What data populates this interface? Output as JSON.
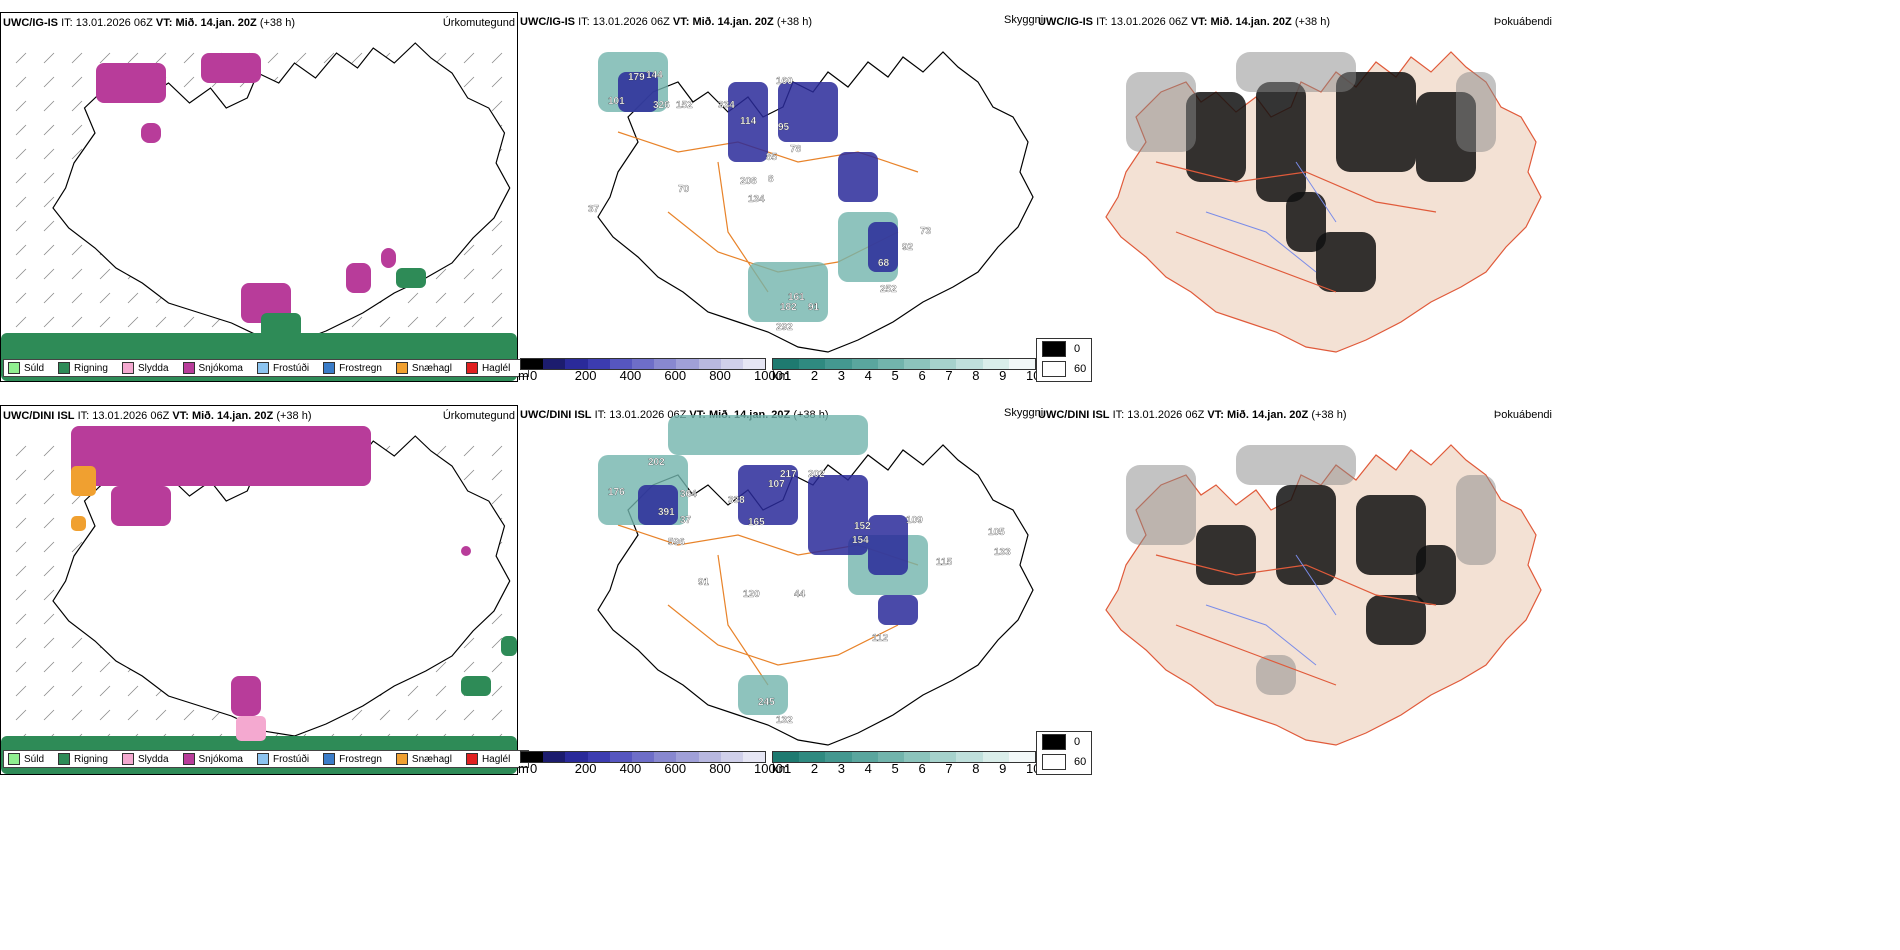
{
  "rows": [
    {
      "model_label": "UWC/IG-IS",
      "it_label": "IT:",
      "it_value": "13.01.2026 06Z",
      "vt_label": "VT:",
      "vt_value": "Mið. 14.jan. 20Z",
      "lead": "(+38 h)"
    },
    {
      "model_label": "UWC/DINI ISL",
      "it_label": "IT:",
      "it_value": "13.01.2026 06Z",
      "vt_label": "VT:",
      "vt_value": "Mið. 14.jan. 20Z",
      "lead": "(+38 h)"
    }
  ],
  "panel_titles": {
    "precip_type": "Úrkomutegund",
    "visibility": "Skyggni",
    "fog": "Þokuábendi"
  },
  "precip_legend": [
    {
      "label": "Súld",
      "color": "#90ee90"
    },
    {
      "label": "Rigning",
      "color": "#2e8b57"
    },
    {
      "label": "Slydda",
      "color": "#f4a9d0"
    },
    {
      "label": "Snjókoma",
      "color": "#b83c9a"
    },
    {
      "label": "Frostúði",
      "color": "#8cc4f0"
    },
    {
      "label": "Frostregn",
      "color": "#3a7cc8"
    },
    {
      "label": "Snæhagl",
      "color": "#f0a030"
    },
    {
      "label": "Haglél",
      "color": "#e02020"
    }
  ],
  "cloudbase_scale": {
    "unit": "m",
    "ticks": [
      "0",
      "200",
      "400",
      "600",
      "800",
      "1000"
    ],
    "colors": [
      "#000000",
      "#1c1c6e",
      "#2a2a9a",
      "#3c3cb0",
      "#5656c0",
      "#6e6ec8",
      "#8888d0",
      "#a0a0d8",
      "#b8b8e0",
      "#d0d0ea",
      "#e6e6f4"
    ]
  },
  "visibility_scale": {
    "unit": "km",
    "ticks": [
      "1",
      "2",
      "3",
      "4",
      "5",
      "6",
      "7",
      "8",
      "9",
      "10"
    ],
    "colors": [
      "#1e7a70",
      "#2f8a80",
      "#449890",
      "#5aa69e",
      "#72b4ac",
      "#8cc4bc",
      "#a6d2cc",
      "#c0e0dc",
      "#daeeea",
      "#f2f8f8"
    ]
  },
  "fog_legend": [
    {
      "label": "0",
      "color": "#000000"
    },
    {
      "label": "60",
      "color": "#ffffff"
    }
  ],
  "cloudbase_labels_row1": [
    "179",
    "144",
    "101",
    "326",
    "152",
    "160",
    "334",
    "114",
    "95",
    "78",
    "70",
    "208",
    "134",
    "37",
    "161",
    "182",
    "91",
    "92",
    "68",
    "252",
    "292",
    "73",
    "85",
    "8"
  ],
  "cloudbase_labels_row2": [
    "202",
    "176",
    "364",
    "338",
    "107",
    "217",
    "202",
    "391",
    "37",
    "596",
    "165",
    "91",
    "120",
    "44",
    "152",
    "154",
    "109",
    "115",
    "112",
    "245",
    "132",
    "105",
    "133"
  ]
}
